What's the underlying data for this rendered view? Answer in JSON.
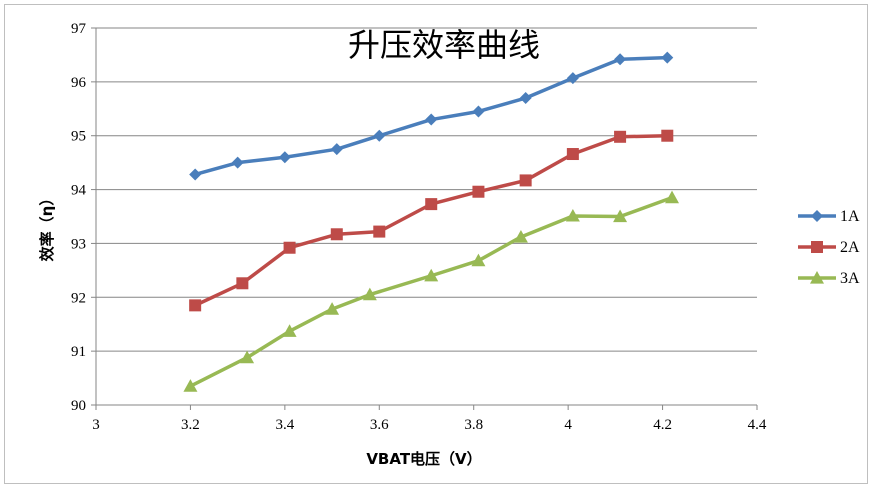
{
  "chart_data": {
    "type": "line",
    "title": "升压效率曲线",
    "xlabel": "VBAT电压（V）",
    "ylabel": "效率（η）",
    "xlim": [
      3,
      4.4
    ],
    "ylim": [
      90,
      97
    ],
    "x_ticks": [
      "3",
      "3.2",
      "3.4",
      "3.6",
      "3.8",
      "4",
      "4.2",
      "4.4"
    ],
    "y_ticks": [
      "90",
      "91",
      "92",
      "93",
      "94",
      "95",
      "96",
      "97"
    ],
    "grid": "horizontal",
    "legend_position": "right",
    "series": [
      {
        "name": "1A",
        "color": "#4a7ebb",
        "marker": "diamond",
        "x": [
          3.21,
          3.3,
          3.4,
          3.51,
          3.6,
          3.71,
          3.81,
          3.91,
          4.01,
          4.11,
          4.21
        ],
        "y": [
          94.28,
          94.5,
          94.6,
          94.75,
          95.0,
          95.3,
          95.45,
          95.7,
          96.07,
          96.42,
          96.45
        ]
      },
      {
        "name": "2A",
        "color": "#be4b48",
        "marker": "square",
        "x": [
          3.21,
          3.31,
          3.41,
          3.51,
          3.6,
          3.71,
          3.81,
          3.91,
          4.01,
          4.11,
          4.21
        ],
        "y": [
          91.85,
          92.26,
          92.92,
          93.17,
          93.22,
          93.73,
          93.96,
          94.17,
          94.66,
          94.98,
          95.0
        ]
      },
      {
        "name": "3A",
        "color": "#98b954",
        "marker": "triangle",
        "x": [
          3.2,
          3.32,
          3.41,
          3.5,
          3.58,
          3.71,
          3.81,
          3.9,
          4.01,
          4.11,
          4.22
        ],
        "y": [
          90.35,
          90.88,
          91.37,
          91.78,
          92.05,
          92.4,
          92.68,
          93.12,
          93.51,
          93.5,
          93.85
        ]
      }
    ]
  }
}
